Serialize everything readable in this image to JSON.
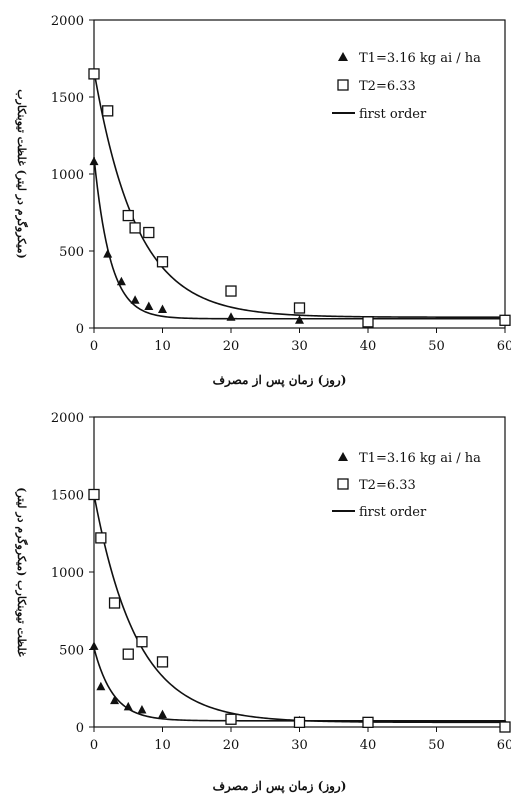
{
  "chart_data": [
    {
      "type": "scatter",
      "xlabel": "(روز) زمان پس از مصرف",
      "ylabel": "(میکروگرم در لیتر) غلظت تیوبنکارب",
      "xlim": [
        0,
        60
      ],
      "ylim": [
        0,
        2000
      ],
      "xticks": [
        "0",
        "10",
        "20",
        "30",
        "40",
        "50",
        "60"
      ],
      "yticks": [
        "0",
        "500",
        "1000",
        "1500",
        "2000"
      ],
      "legend_position": "top-right",
      "grid": false,
      "series": [
        {
          "name": "T1=3.16 kg ai / ha",
          "marker": "triangle",
          "x": [
            0,
            2,
            4,
            6,
            8,
            10,
            20,
            30,
            40,
            60
          ],
          "y": [
            1080,
            480,
            300,
            180,
            140,
            120,
            70,
            50,
            40,
            40
          ]
        },
        {
          "name": "T2=6.33",
          "marker": "square",
          "x": [
            0,
            2,
            5,
            6,
            8,
            10,
            20,
            30,
            40,
            60
          ],
          "y": [
            1650,
            1410,
            730,
            650,
            620,
            430,
            240,
            130,
            40,
            50
          ]
        },
        {
          "name": "first order",
          "marker": "line",
          "curves": [
            {
              "a": 1050,
              "k": 0.42,
              "c": 60
            },
            {
              "a": 1600,
              "k": 0.16,
              "c": 70
            }
          ]
        }
      ]
    },
    {
      "type": "scatter",
      "xlabel": "(روز) زمان پس از مصرف",
      "ylabel": "غلظت تیوبنکارب (میکروگرم در لیتر)",
      "xlim": [
        0,
        60
      ],
      "ylim": [
        0,
        2000
      ],
      "xticks": [
        "0",
        "10",
        "20",
        "30",
        "40",
        "50",
        "60"
      ],
      "yticks": [
        "0",
        "500",
        "1000",
        "1500",
        "2000"
      ],
      "legend_position": "top-right",
      "grid": false,
      "series": [
        {
          "name": "T1=3.16 kg ai / ha",
          "marker": "triangle",
          "x": [
            0,
            1,
            3,
            5,
            7,
            10,
            20,
            30,
            40,
            60
          ],
          "y": [
            520,
            260,
            170,
            130,
            110,
            80,
            50,
            40,
            30,
            20
          ]
        },
        {
          "name": "T2=6.33",
          "marker": "square",
          "x": [
            0,
            1,
            3,
            5,
            7,
            10,
            20,
            30,
            40,
            60
          ],
          "y": [
            1500,
            1220,
            800,
            470,
            550,
            420,
            50,
            30,
            30,
            0
          ]
        },
        {
          "name": "first order",
          "marker": "line",
          "curves": [
            {
              "a": 470,
              "k": 0.36,
              "c": 40
            },
            {
              "a": 1470,
              "k": 0.16,
              "c": 30
            }
          ]
        }
      ]
    }
  ]
}
